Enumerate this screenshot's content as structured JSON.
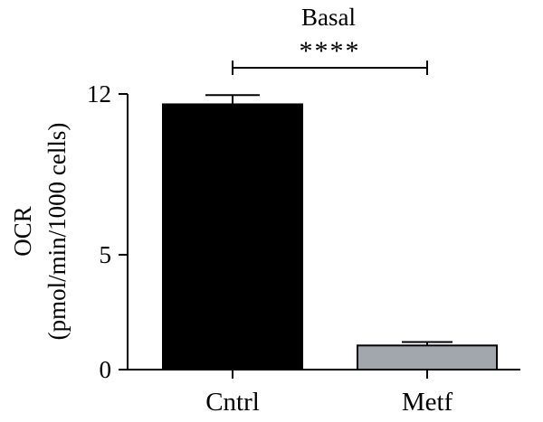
{
  "chart_data": {
    "type": "bar",
    "title": "Basal",
    "ylabel_line1": "OCR",
    "ylabel_line2": "(pmol/min/1000 cells)",
    "xlabel": "",
    "ylim": [
      0,
      12
    ],
    "yticks": [
      0,
      5,
      12
    ],
    "categories": [
      "Cntrl",
      "Metf"
    ],
    "values": [
      11.55,
      1.05
    ],
    "errors": [
      0.4,
      0.15
    ],
    "bar_colors": [
      "#000000",
      "#a2a6ad"
    ],
    "significance": {
      "from": "Cntrl",
      "to": "Metf",
      "label": "****"
    },
    "grid": false,
    "legend": "none"
  }
}
